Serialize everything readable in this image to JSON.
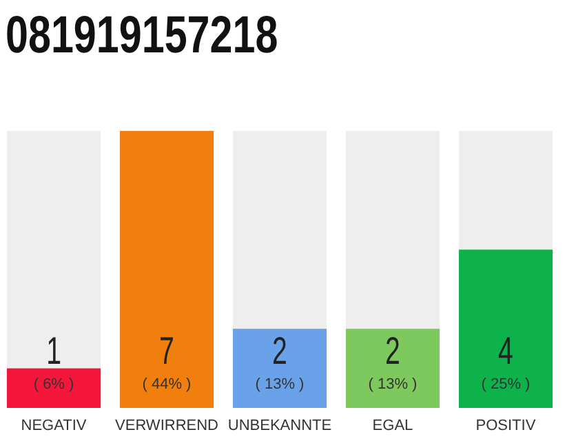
{
  "chart_data": {
    "type": "bar",
    "title": "081919157218",
    "categories": [
      "NEGATIV",
      "VERWIRREND",
      "UNBEKANNTE",
      "EGAL",
      "POSITIV"
    ],
    "values": [
      1,
      7,
      2,
      2,
      4
    ],
    "colors": [
      "#f5163c",
      "#f07f0e",
      "#6aa2ea",
      "#7dc95d",
      "#0db24a"
    ],
    "data_labels": true,
    "annotations": [
      "( 6% )",
      "( 44% )",
      "( 13% )",
      "( 13% )",
      "( 25% )"
    ]
  }
}
